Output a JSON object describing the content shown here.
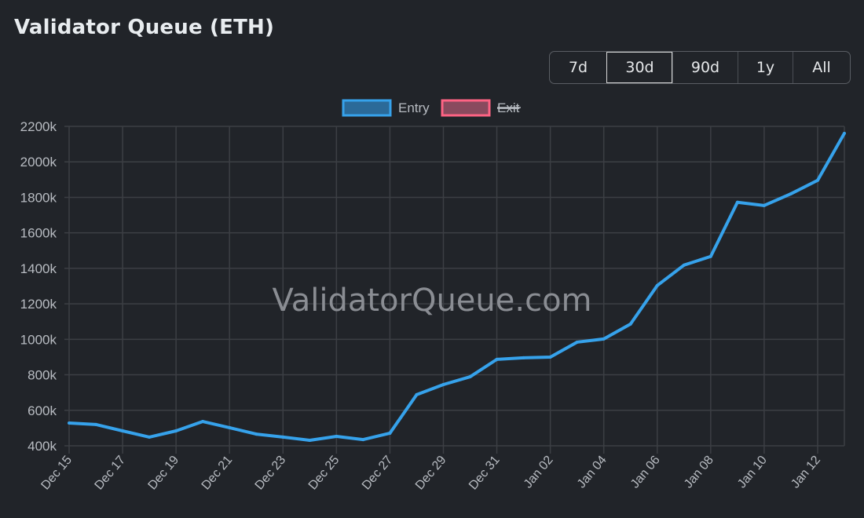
{
  "header": {
    "title": "Validator Queue (ETH)"
  },
  "range_buttons": [
    {
      "label": "7d"
    },
    {
      "label": "30d",
      "active": true
    },
    {
      "label": "90d"
    },
    {
      "label": "1y"
    },
    {
      "label": "All"
    }
  ],
  "watermark": "ValidatorQueue.com",
  "colors": {
    "entry": "#36a2eb",
    "exit": "#ff6384",
    "grid": "#3c3f44",
    "text": "#b8bcc2"
  },
  "chart_data": {
    "type": "line",
    "title": "Validator Queue (ETH)",
    "legend": [
      {
        "name": "Entry",
        "hidden": false
      },
      {
        "name": "Exit",
        "hidden": true
      }
    ],
    "legend_placement": "top-center",
    "x": [
      "Dec 15",
      "Dec 16",
      "Dec 17",
      "Dec 18",
      "Dec 19",
      "Dec 20",
      "Dec 21",
      "Dec 22",
      "Dec 23",
      "Dec 24",
      "Dec 25",
      "Dec 26",
      "Dec 27",
      "Dec 28",
      "Dec 29",
      "Dec 30",
      "Dec 31",
      "Jan 01",
      "Jan 02",
      "Jan 03",
      "Jan 04",
      "Jan 05",
      "Jan 06",
      "Jan 07",
      "Jan 08",
      "Jan 09",
      "Jan 10",
      "Jan 11",
      "Jan 12",
      "Jan 13"
    ],
    "x_tick_labels": [
      "Dec 15",
      "Dec 17",
      "Dec 19",
      "Dec 21",
      "Dec 23",
      "Dec 25",
      "Dec 27",
      "Dec 29",
      "Dec 31",
      "Jan 02",
      "Jan 04",
      "Jan 06",
      "Jan 08",
      "Jan 10",
      "Jan 12"
    ],
    "series": [
      {
        "name": "Entry",
        "values": [
          528,
          520,
          484,
          449,
          484,
          537,
          502,
          466,
          449,
          431,
          453,
          435,
          471,
          688,
          745,
          789,
          887,
          896,
          900,
          984,
          1002,
          1086,
          1303,
          1418,
          1467,
          1772,
          1754,
          1820,
          1896,
          2161
        ]
      }
    ],
    "y_unit": "k",
    "ylim": [
      400,
      2200
    ],
    "y_ticks": [
      400,
      600,
      800,
      1000,
      1200,
      1400,
      1600,
      1800,
      2000,
      2200
    ],
    "grid": true
  }
}
